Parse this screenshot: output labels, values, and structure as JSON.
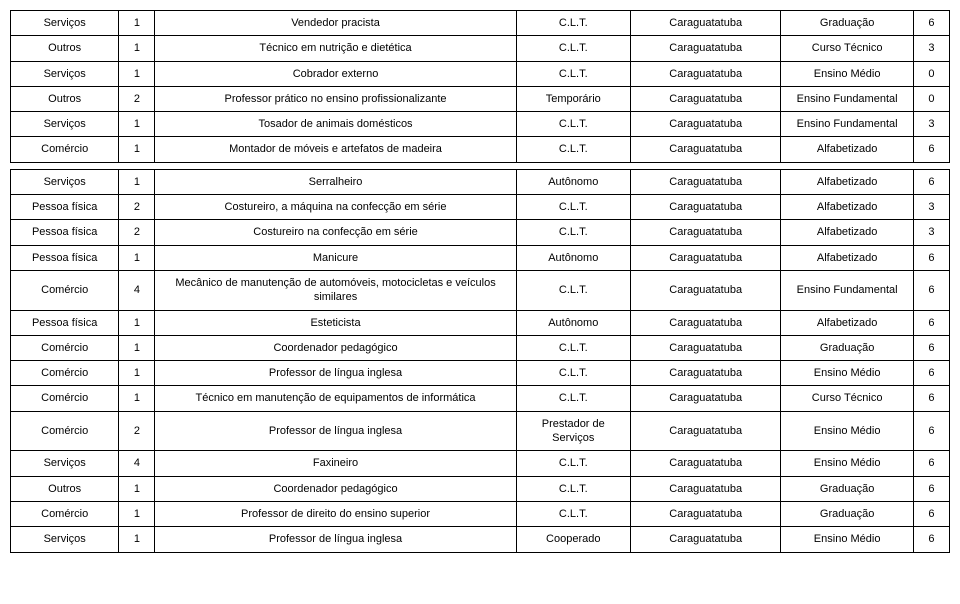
{
  "rows_a": [
    [
      "Serviços",
      "1",
      "Vendedor pracista",
      "C.L.T.",
      "Caraguatatuba",
      "Graduação",
      "6"
    ],
    [
      "Outros",
      "1",
      "Técnico em nutrição e dietética",
      "C.L.T.",
      "Caraguatatuba",
      "Curso Técnico",
      "3"
    ],
    [
      "Serviços",
      "1",
      "Cobrador externo",
      "C.L.T.",
      "Caraguatatuba",
      "Ensino Médio",
      "0"
    ],
    [
      "Outros",
      "2",
      "Professor prático no ensino profissionalizante",
      "Temporário",
      "Caraguatatuba",
      "Ensino Fundamental",
      "0"
    ],
    [
      "Serviços",
      "1",
      "Tosador de animais domésticos",
      "C.L.T.",
      "Caraguatatuba",
      "Ensino Fundamental",
      "3"
    ],
    [
      "Comércio",
      "1",
      "Montador de móveis e artefatos de madeira",
      "C.L.T.",
      "Caraguatatuba",
      "Alfabetizado",
      "6"
    ]
  ],
  "rows_b": [
    [
      "Serviços",
      "1",
      "Serralheiro",
      "Autônomo",
      "Caraguatatuba",
      "Alfabetizado",
      "6"
    ],
    [
      "Pessoa física",
      "2",
      "Costureiro, a máquina na confecção em série",
      "C.L.T.",
      "Caraguatatuba",
      "Alfabetizado",
      "3"
    ],
    [
      "Pessoa física",
      "2",
      "Costureiro na confecção em série",
      "C.L.T.",
      "Caraguatatuba",
      "Alfabetizado",
      "3"
    ],
    [
      "Pessoa física",
      "1",
      "Manicure",
      "Autônomo",
      "Caraguatatuba",
      "Alfabetizado",
      "6"
    ],
    [
      "Comércio",
      "4",
      "Mecânico de manutenção de automóveis, motocicletas e veículos similares",
      "C.L.T.",
      "Caraguatatuba",
      "Ensino Fundamental",
      "6"
    ],
    [
      "Pessoa física",
      "1",
      "Esteticista",
      "Autônomo",
      "Caraguatatuba",
      "Alfabetizado",
      "6"
    ],
    [
      "Comércio",
      "1",
      "Coordenador pedagógico",
      "C.L.T.",
      "Caraguatatuba",
      "Graduação",
      "6"
    ],
    [
      "Comércio",
      "1",
      "Professor de língua inglesa",
      "C.L.T.",
      "Caraguatatuba",
      "Ensino Médio",
      "6"
    ],
    [
      "Comércio",
      "1",
      "Técnico em manutenção de equipamentos de informática",
      "C.L.T.",
      "Caraguatatuba",
      "Curso Técnico",
      "6"
    ],
    [
      "Comércio",
      "2",
      "Professor de língua inglesa",
      "Prestador de Serviços",
      "Caraguatatuba",
      "Ensino Médio",
      "6"
    ],
    [
      "Serviços",
      "4",
      "Faxineiro",
      "C.L.T.",
      "Caraguatatuba",
      "Ensino Médio",
      "6"
    ],
    [
      "Outros",
      "1",
      "Coordenador pedagógico",
      "C.L.T.",
      "Caraguatatuba",
      "Graduação",
      "6"
    ],
    [
      "Comércio",
      "1",
      "Professor de direito do ensino superior",
      "C.L.T.",
      "Caraguatatuba",
      "Graduação",
      "6"
    ],
    [
      "Serviços",
      "1",
      "Professor de língua inglesa",
      "Cooperado",
      "Caraguatatuba",
      "Ensino Médio",
      "6"
    ]
  ]
}
